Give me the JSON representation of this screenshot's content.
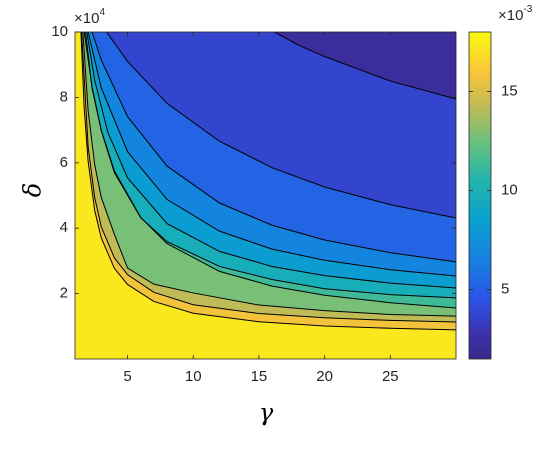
{
  "chart_data": {
    "type": "contourf",
    "xlabel": "γ",
    "ylabel": "δ",
    "xlim": [
      1,
      30
    ],
    "ylim": [
      0,
      10
    ],
    "xticks": [
      5,
      10,
      15,
      20,
      25
    ],
    "yticks": [
      2,
      4,
      6,
      8,
      10
    ],
    "y_multiplier": {
      "base": "×10",
      "exponent": "4"
    },
    "colormap": "parula",
    "clim": [
      1.5,
      18
    ],
    "cticks": [
      5,
      10,
      15
    ],
    "c_multiplier": {
      "base": "×10",
      "exponent": "-3"
    },
    "line_color": "#000000",
    "contours": [
      {
        "level": 3,
        "x": [
          16.2,
          18,
          20,
          22,
          25,
          30
        ],
        "y": [
          10,
          9.6,
          9.25,
          8.95,
          8.5,
          7.95
        ]
      },
      {
        "level": 4.5,
        "x": [
          3.4,
          5,
          8,
          12,
          16,
          20,
          25,
          30
        ],
        "y": [
          10,
          9.1,
          7.82,
          6.66,
          5.85,
          5.26,
          4.72,
          4.31
        ]
      },
      {
        "level": 6,
        "x": [
          2.3,
          3,
          5,
          8,
          12,
          16,
          20,
          25,
          30
        ],
        "y": [
          10,
          9.14,
          7.41,
          5.9,
          4.77,
          4.09,
          3.64,
          3.25,
          2.97
        ]
      },
      {
        "level": 7.5,
        "x": [
          2,
          3,
          5,
          8,
          12,
          16,
          20,
          25,
          30
        ],
        "y": [
          10,
          8.29,
          6.34,
          4.88,
          3.91,
          3.36,
          3.02,
          2.73,
          2.54
        ]
      },
      {
        "level": 9,
        "x": [
          1.9,
          2.5,
          3.5,
          5,
          8,
          12,
          16,
          20,
          25,
          30
        ],
        "y": [
          10,
          8.52,
          6.93,
          5.54,
          4.14,
          3.29,
          2.83,
          2.55,
          2.32,
          2.17
        ]
      },
      {
        "level": 10.5,
        "x": [
          1.8,
          2.3,
          3,
          4,
          6,
          8,
          12,
          16,
          20,
          25,
          30
        ],
        "y": [
          10,
          8.28,
          6.98,
          5.7,
          4.32,
          3.59,
          2.83,
          2.43,
          2.15,
          1.97,
          1.87
        ]
      },
      {
        "level": 12,
        "x": [
          1.7,
          2.3,
          3,
          4,
          6,
          8,
          12,
          16,
          20,
          25,
          30
        ],
        "y": [
          10,
          8.32,
          7.0,
          5.75,
          4.33,
          3.53,
          2.68,
          2.23,
          1.95,
          1.72,
          1.56
        ]
      },
      {
        "level": 13.5,
        "x": [
          1.6,
          2,
          2.5,
          3,
          4,
          5,
          7,
          10,
          15,
          20,
          25,
          30
        ],
        "y": [
          10,
          7.59,
          5.94,
          4.94,
          3.81,
          2.78,
          2.29,
          2.02,
          1.65,
          1.48,
          1.36,
          1.31
        ]
      },
      {
        "level": 15,
        "x": [
          1.5,
          2,
          2.5,
          3,
          4,
          5,
          7,
          10,
          15,
          20,
          25,
          30
        ],
        "y": [
          10,
          6.49,
          4.93,
          4.04,
          3.09,
          2.58,
          2.04,
          1.66,
          1.39,
          1.26,
          1.18,
          1.13
        ]
      },
      {
        "level": 16.5,
        "x": [
          1.45,
          1.7,
          2,
          2.5,
          3,
          4,
          5,
          7,
          10,
          15,
          20,
          25,
          30
        ],
        "y": [
          10,
          7.66,
          6.04,
          4.54,
          3.7,
          2.77,
          2.28,
          1.76,
          1.4,
          1.14,
          1.01,
          0.94,
          0.89
        ]
      }
    ]
  }
}
